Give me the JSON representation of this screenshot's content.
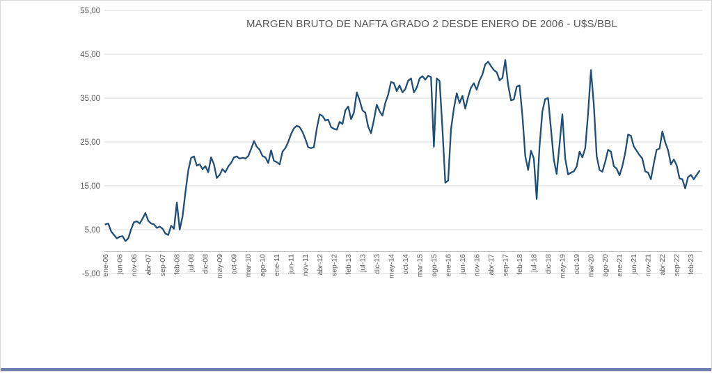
{
  "window": {
    "frame_border_color": "#d9d9d9",
    "bottom_edge_color": "#6b80ab",
    "background_color": "#ffffff"
  },
  "chart_data": {
    "type": "line",
    "title": "MARGEN BRUTO DE NAFTA GRADO 2 DESDE ENERO DE 2006 - U$S/BBL",
    "xlabel": "",
    "ylabel": "",
    "ylim": [
      -5,
      55
    ],
    "grid": true,
    "legend": "none",
    "line_color": "#1F4E79",
    "gridline_color": "#d9d9d9",
    "axis_line_color": "#bfbfbf",
    "text_color": "#595959",
    "y_tick_labels": [
      "55,00",
      "45,00",
      "35,00",
      "25,00",
      "15,00",
      "5,00",
      "-5,00"
    ],
    "y_tick_values": [
      55,
      45,
      35,
      25,
      15,
      5,
      -5
    ],
    "x_label_every": 5,
    "x_tick_labels": [
      "ene-06",
      "jun-06",
      "nov-06",
      "abr-07",
      "sep-07",
      "feb-08",
      "jul-08",
      "dic-08",
      "may-09",
      "oct-09",
      "mar-10",
      "ago-10",
      "ene-11",
      "jun-11",
      "nov-11",
      "abr-12",
      "sep-12",
      "feb-13",
      "jul-13",
      "dic-13",
      "may-14",
      "oct-14",
      "mar-15",
      "ago-15",
      "ene-16",
      "jun-16",
      "nov-16",
      "abr-17",
      "sep-17",
      "feb-18",
      "jul-18",
      "dic-18",
      "may-19",
      "oct-19",
      "mar-20",
      "ago-20",
      "ene-21",
      "jun-21",
      "nov-21",
      "abr-22",
      "sep-22",
      "feb-23"
    ],
    "x_range_note": "monthly data from ene-06 to may-23",
    "series": [
      {
        "name": "Margen bruto de nafta grado 2 (U$S/BBL)",
        "values": [
          6.2,
          6.4,
          4.6,
          3.8,
          3.0,
          3.4,
          3.5,
          2.4,
          3.0,
          5.1,
          6.7,
          6.9,
          6.4,
          7.5,
          8.8,
          7.0,
          6.4,
          6.2,
          5.4,
          5.7,
          5.2,
          4.1,
          3.8,
          5.9,
          5.2,
          11.2,
          5.0,
          8.0,
          13.5,
          18.5,
          21.4,
          21.7,
          19.6,
          19.9,
          18.8,
          19.5,
          18.1,
          21.5,
          19.9,
          16.8,
          17.5,
          18.8,
          18.1,
          19.4,
          20.2,
          21.5,
          21.7,
          21.2,
          21.4,
          21.2,
          21.8,
          23.4,
          25.2,
          23.9,
          23.2,
          21.8,
          21.5,
          20.2,
          23.1,
          20.7,
          20.4,
          19.9,
          22.8,
          23.6,
          25.0,
          26.8,
          28.1,
          28.7,
          28.4,
          27.3,
          25.7,
          23.8,
          23.6,
          23.8,
          28.0,
          31.3,
          30.9,
          29.9,
          30.1,
          28.4,
          28.0,
          27.8,
          29.6,
          29.1,
          32.2,
          33.1,
          30.2,
          31.7,
          36.3,
          34.5,
          32.2,
          31.7,
          28.5,
          27.0,
          30.0,
          33.5,
          32.0,
          31.0,
          33.9,
          35.8,
          38.7,
          38.4,
          36.6,
          37.9,
          36.3,
          37.1,
          39.0,
          39.5,
          36.3,
          37.4,
          39.5,
          40.0,
          39.2,
          40.1,
          39.8,
          23.9,
          39.5,
          38.9,
          28.0,
          15.7,
          16.2,
          27.9,
          32.6,
          36.1,
          33.9,
          35.5,
          32.6,
          35.3,
          37.4,
          38.4,
          36.9,
          39.0,
          40.4,
          42.7,
          43.3,
          42.3,
          41.4,
          40.9,
          39.1,
          39.6,
          43.7,
          38.0,
          34.5,
          34.7,
          37.6,
          37.9,
          31.0,
          21.8,
          18.6,
          23.0,
          21.2,
          12.0,
          24.0,
          32.0,
          34.8,
          35.0,
          28.0,
          21.0,
          17.7,
          24.4,
          31.3,
          21.2,
          17.6,
          18.0,
          18.3,
          19.4,
          22.8,
          21.5,
          23.6,
          31.6,
          41.4,
          33.5,
          21.8,
          18.6,
          18.2,
          20.5,
          23.2,
          22.8,
          19.5,
          18.9,
          17.4,
          19.5,
          22.5,
          26.7,
          26.4,
          24.0,
          23.0,
          22.0,
          21.2,
          18.3,
          18.0,
          16.5,
          20.0,
          23.2,
          23.5,
          27.4,
          24.9,
          23.1,
          19.9,
          21.0,
          19.7,
          16.7,
          16.5,
          14.4,
          17.0,
          17.5,
          16.5,
          17.5,
          18.4
        ]
      }
    ]
  }
}
